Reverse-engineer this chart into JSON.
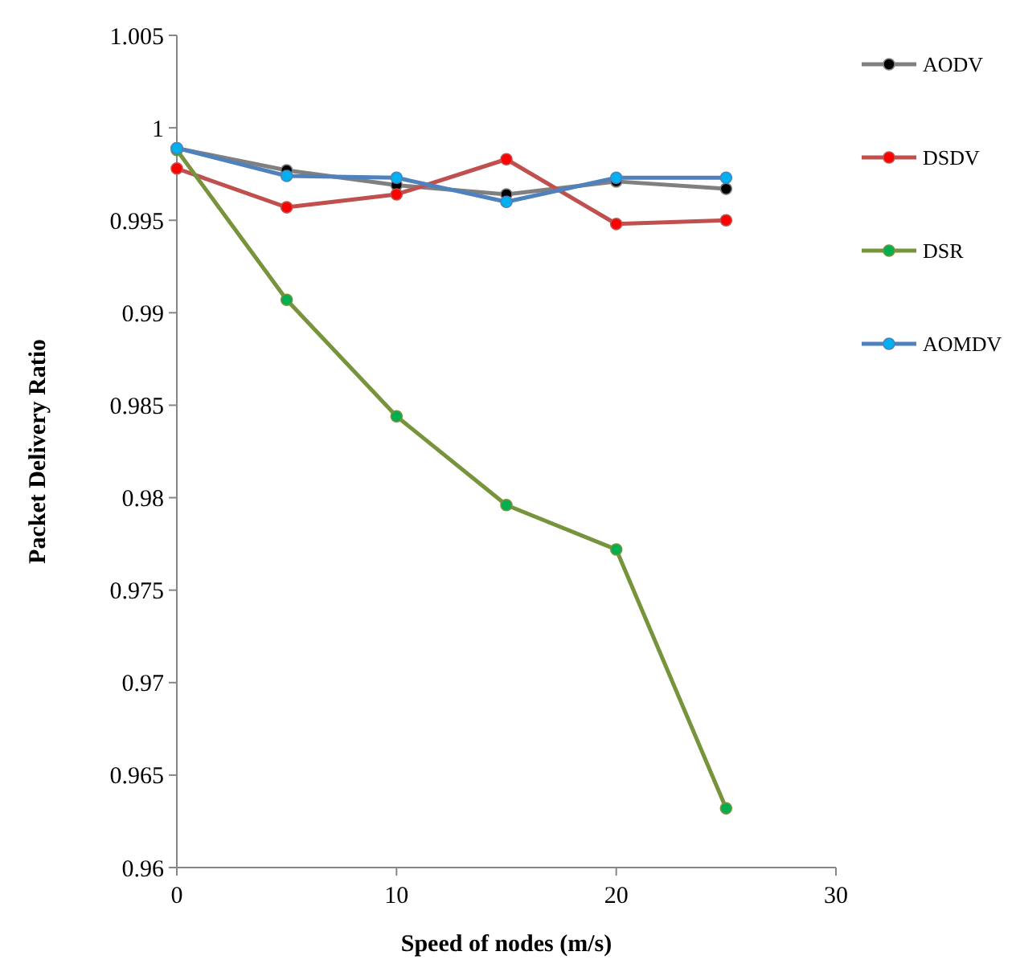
{
  "chart_data": {
    "type": "line",
    "xlabel": "Speed of nodes (m/s)",
    "ylabel": "Packet Delivery Ratio",
    "x": [
      0,
      5,
      10,
      15,
      20,
      25
    ],
    "xlim": [
      0,
      30
    ],
    "xticks": [
      0,
      10,
      20,
      30
    ],
    "ylim": [
      0.96,
      1.005
    ],
    "yticks": [
      0.96,
      0.965,
      0.97,
      0.975,
      0.98,
      0.985,
      0.99,
      0.995,
      {
        "value": 1,
        "label": "1"
      },
      1.005
    ],
    "grid": false,
    "legend": "right",
    "marker": "circle",
    "line_style": "solid",
    "series": [
      {
        "name": "AODV",
        "color": "#808080",
        "values": [
          0.9989,
          0.9977,
          0.9969,
          0.9964,
          0.9971,
          0.9967
        ]
      },
      {
        "name": "DSDV",
        "color": "#c0504d",
        "values": [
          0.9978,
          0.9957,
          0.9964,
          0.9983,
          0.9948,
          0.995
        ]
      },
      {
        "name": "DSR",
        "color": "#77933c",
        "values": [
          0.9988,
          0.9907,
          0.9844,
          0.9796,
          0.9772,
          0.9632
        ]
      },
      {
        "name": "AOMDV",
        "color": "#4f81bd",
        "values": [
          0.9989,
          0.9974,
          0.9973,
          0.996,
          0.9973,
          0.9973
        ]
      }
    ]
  }
}
